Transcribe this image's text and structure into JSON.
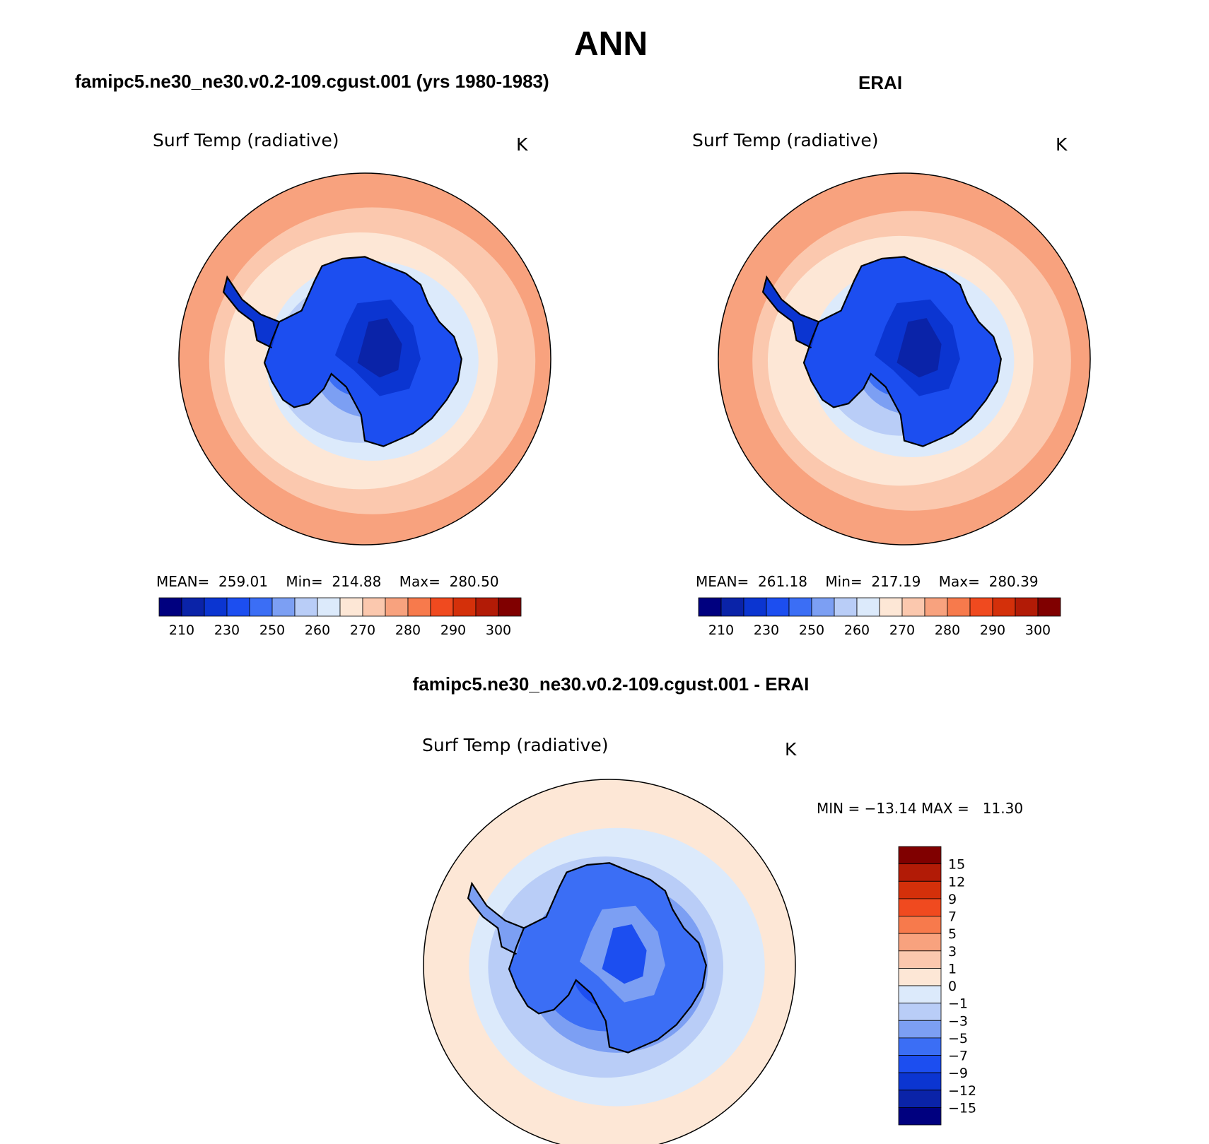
{
  "figure": {
    "season": "ANN",
    "variable": "Surf Temp (radiative)",
    "units": "K"
  },
  "panels": [
    {
      "id": "model",
      "title": "famipc5.ne30_ne30.v0.2-109.cgust.001 (yrs 1980-1983)",
      "variable": "Surf Temp (radiative)",
      "units": "K",
      "stats_text": "MEAN=  259.01    Min=  214.88    Max=  280.50",
      "stats": {
        "mean": 259.01,
        "min": 214.88,
        "max": 280.5
      }
    },
    {
      "id": "obs",
      "title": "ERAI",
      "variable": "Surf Temp (radiative)",
      "units": "K",
      "stats_text": "MEAN=  261.18    Min=  217.19    Max=  280.39",
      "stats": {
        "mean": 261.18,
        "min": 217.19,
        "max": 280.39
      }
    },
    {
      "id": "diff",
      "title": "famipc5.ne30_ne30.v0.2-109.cgust.001 - ERAI",
      "variable": "Surf Temp (radiative)",
      "units": "K",
      "stats_text": "MIN = −13.14 MAX =   11.30",
      "stats": {
        "min": -13.14,
        "max": 11.3
      }
    }
  ],
  "colorbars": {
    "abs": {
      "colors": [
        "#00007f",
        "#0a23a8",
        "#0b35d1",
        "#1c4ef0",
        "#3b6ef5",
        "#7c9ff3",
        "#b9cdf7",
        "#dceafb",
        "#fde7d6",
        "#fbc8ae",
        "#f8a27e",
        "#f77a4c",
        "#f04a1f",
        "#d4300a",
        "#b21b06",
        "#800000"
      ],
      "tick_labels": [
        "210",
        "230",
        "250",
        "260",
        "270",
        "280",
        "290",
        "300"
      ]
    },
    "diff": {
      "colors": [
        "#00007f",
        "#0a23a8",
        "#0b35d1",
        "#1c4ef0",
        "#3b6ef5",
        "#7c9ff3",
        "#b9cdf7",
        "#dceafb",
        "#fde7d6",
        "#fbc8ae",
        "#f8a27e",
        "#f77a4c",
        "#f04a1f",
        "#d4300a",
        "#b21b06",
        "#800000"
      ],
      "tick_labels": [
        "−15",
        "−12",
        "−9",
        "−7",
        "−5",
        "−3",
        "−1",
        "0",
        "1",
        "3",
        "5",
        "7",
        "9",
        "12",
        "15"
      ]
    }
  },
  "fields": {
    "model": {
      "zones": [
        0.96,
        0.86,
        0.72,
        0.56,
        0.46,
        0.32,
        0.2
      ],
      "colors": [
        "#f8a27e",
        "#fbc8ae",
        "#fde7d6",
        "#dceafb",
        "#b9cdf7",
        "#7c9ff3",
        "#3b6ef5"
      ],
      "land": [
        "#1c4ef0",
        "#0b35d1",
        "#0a23a8"
      ]
    },
    "obs": {
      "zones": [
        0.96,
        0.84,
        0.7,
        0.54,
        0.42,
        0.3,
        0.2
      ],
      "colors": [
        "#f8a27e",
        "#fbc8ae",
        "#fde7d6",
        "#dceafb",
        "#b9cdf7",
        "#7c9ff3",
        "#3b6ef5"
      ],
      "land": [
        "#1c4ef0",
        "#0b35d1",
        "#0a23a8"
      ]
    },
    "diff": {
      "zones": [
        1.0,
        0.78,
        0.62,
        0.48,
        0.36,
        0.24
      ],
      "colors": [
        "#fde7d6",
        "#dceafb",
        "#b9cdf7",
        "#7c9ff3",
        "#3b6ef5",
        "#1c4ef0"
      ],
      "land": [
        "#3b6ef5",
        "#7c9ff3",
        "#1c4ef0"
      ]
    }
  }
}
